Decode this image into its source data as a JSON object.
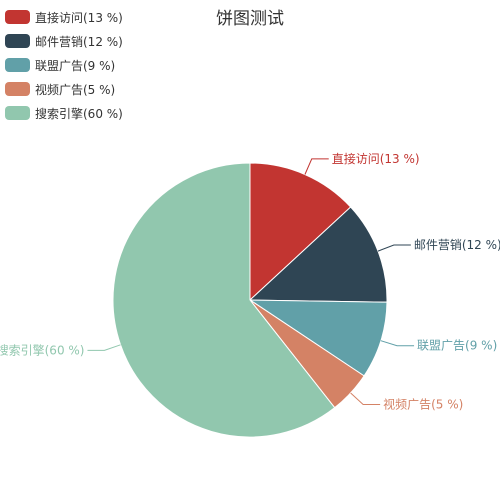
{
  "chart_data": {
    "type": "pie",
    "title": "饼图测试",
    "slices": [
      {
        "label": "直接访问",
        "value": 13,
        "display": "直接访问(13 %)",
        "color": "#c23531"
      },
      {
        "label": "邮件营销",
        "value": 12,
        "display": "邮件营销(12 %)",
        "color": "#2f4554"
      },
      {
        "label": "联盟广告",
        "value": 9,
        "display": "联盟广告(9 %)",
        "color": "#61a0a8"
      },
      {
        "label": "视频广告",
        "value": 5,
        "display": "视频广告(5 %)",
        "color": "#d48265"
      },
      {
        "label": "搜索引擎",
        "value": 60,
        "display": "搜索引擎(60 %)",
        "color": "#91c7ae"
      }
    ],
    "legend_position": "top-left"
  }
}
